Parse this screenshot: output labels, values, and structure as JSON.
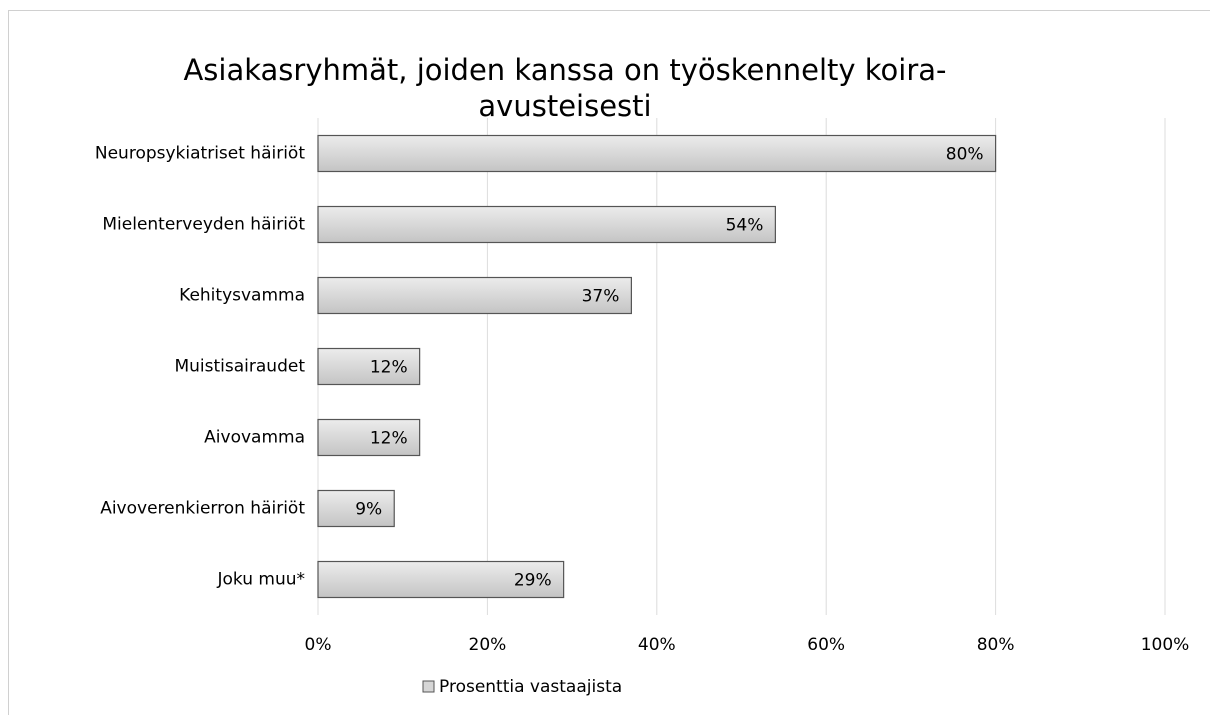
{
  "chart_data": {
    "type": "bar",
    "orientation": "horizontal",
    "title": [
      "Asiakasryhmät, joiden kanssa on työskennelty koira-",
      "avusteisesti"
    ],
    "categories": [
      "Neuropsykiatriset häiriöt",
      "Mielenterveyden häiriöt",
      "Kehitysvamma",
      "Muistisairaudet",
      "Aivovamma",
      "Aivoverenkierron häiriöt",
      "Joku muu*"
    ],
    "series": [
      {
        "name": "Prosenttia vastaajista",
        "color": "#d6d6d6",
        "values": [
          80,
          54,
          37,
          12,
          12,
          9,
          29
        ],
        "value_labels": [
          "80%",
          "54%",
          "37%",
          "12%",
          "12%",
          "9%",
          "29%"
        ]
      }
    ],
    "xlim": [
      0,
      100
    ],
    "xticks": [
      {
        "value": 0,
        "label": "0%"
      },
      {
        "value": 20,
        "label": "20%"
      },
      {
        "value": 40,
        "label": "40%"
      },
      {
        "value": 60,
        "label": "60%"
      },
      {
        "value": 80,
        "label": "80%"
      },
      {
        "value": 100,
        "label": "100%"
      }
    ],
    "grid": true,
    "legend": "bottom"
  }
}
